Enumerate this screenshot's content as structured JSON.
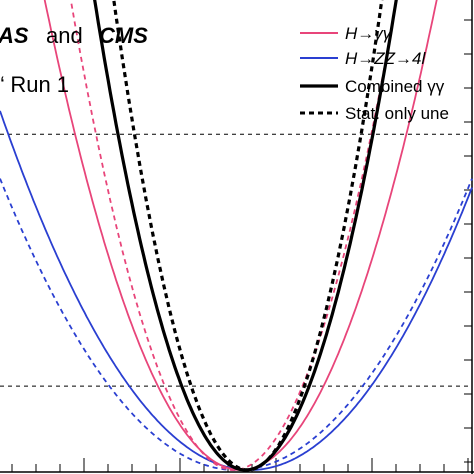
{
  "header": {
    "title_part1": "AS",
    "title_and": "and",
    "title_part2": "CMS",
    "subtitle": "Run 1"
  },
  "chart_data": {
    "type": "line",
    "title": "",
    "xlabel": "",
    "ylabel": "",
    "grid": false,
    "legend_position": "top-right",
    "legend": [
      {
        "id": "hgg",
        "label_html": "H&#8594;&#947;&#947;",
        "color": "#e8457a",
        "style": "solid"
      },
      {
        "id": "hzz",
        "label_html": "H&#8594;ZZ&#8594;4l",
        "color": "#2a3fd1",
        "style": "solid"
      },
      {
        "id": "comb",
        "label": "Combined γγ",
        "color": "#000000",
        "style": "solid"
      },
      {
        "id": "stat",
        "label": "Stat. only une",
        "color": "#000000",
        "style": "dashed"
      }
    ],
    "series": [
      {
        "id": "hzz_stat",
        "color": "#2a3fd1",
        "style": "dashed",
        "center": 0.5,
        "k": 0.62
      },
      {
        "id": "hzz",
        "color": "#2a3fd1",
        "style": "solid",
        "center": 0.53,
        "k": 0.68
      },
      {
        "id": "hgg_stat",
        "color": "#e8457a",
        "style": "dashed",
        "center": 0.495,
        "k": 2.1
      },
      {
        "id": "hgg",
        "color": "#e8457a",
        "style": "solid",
        "center": 0.51,
        "k": 1.45
      },
      {
        "id": "comb",
        "color": "#000000",
        "style": "solid",
        "center": 0.52,
        "k": 2.45
      },
      {
        "id": "comb_stat",
        "color": "#000000",
        "style": "dashed",
        "center": 0.525,
        "k": 3.1
      }
    ],
    "reference_lines": [
      1,
      4
    ],
    "ylim": [
      0,
      5.6
    ],
    "xlim": [
      0,
      1
    ]
  },
  "colors": {
    "pink": "#e8457a",
    "blue": "#2a3fd1",
    "black": "#000000"
  }
}
